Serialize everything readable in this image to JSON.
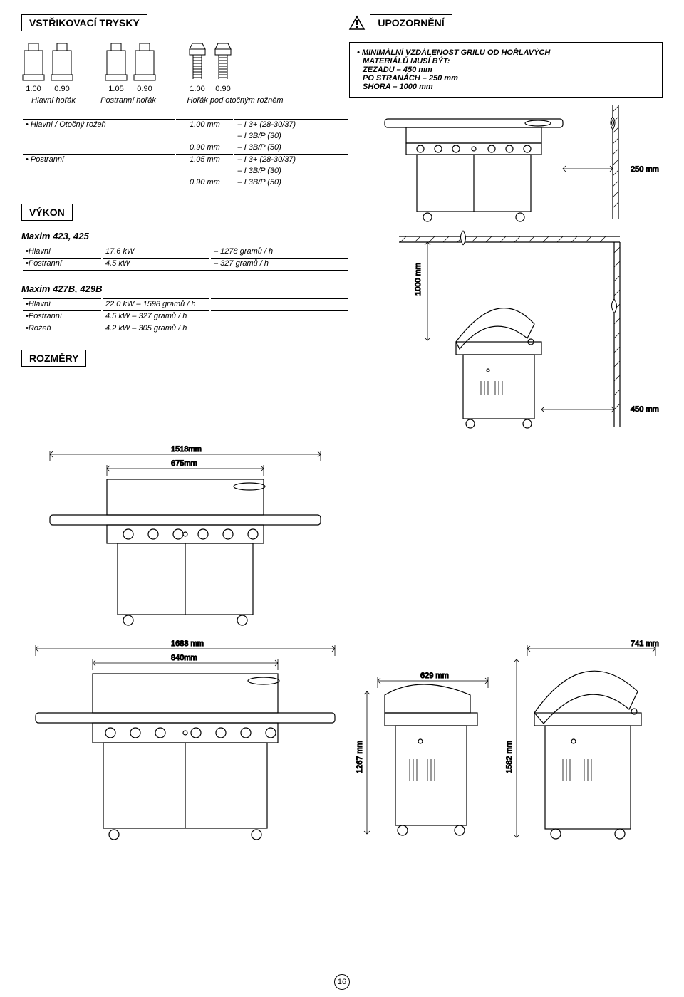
{
  "titles": {
    "nozzles": "VSTŘIKOVACÍ TRYSKY",
    "warning": "UPOZORNĚNÍ",
    "output": "VÝKON",
    "dimensions": "ROZMĚRY"
  },
  "nozzle_values": {
    "n1": "1.00",
    "n2": "0.90",
    "n3": "1.05",
    "n4": "0.90",
    "n5": "1.00",
    "n6": "0.90"
  },
  "burner_labels": {
    "main": "Hlavní hořák",
    "side": "Postranní hořák",
    "rot": "Hořák pod otočným rožněm"
  },
  "warning_text": {
    "line1": "• MINIMÁLNÍ VZDÁLENOST GRILU OD HOŘLAVÝCH",
    "line2": "MATERIÁLŮ MUSÍ BÝT:",
    "line3": "ZEZADU – 450 mm",
    "line4": "PO STRANÁCH – 250 mm",
    "line5": "SHORA – 1000 mm"
  },
  "spec_rows": [
    {
      "c1": "Hlavní / Otočný rožeň",
      "c2": "1.00 mm",
      "c3": "– I 3+ (28-30/37)"
    },
    {
      "c1": "",
      "c2": "",
      "c3": "– I 3B/P (30)"
    },
    {
      "c1": "",
      "c2": "0.90 mm",
      "c3": "– I 3B/P (50)"
    },
    {
      "c1": "Postranní",
      "c2": "1.05 mm",
      "c3": "– I 3+ (28-30/37)"
    },
    {
      "c1": "",
      "c2": "",
      "c3": "– I 3B/P (30)"
    },
    {
      "c1": "",
      "c2": "0.90 mm",
      "c3": "– I 3B/P (50)"
    }
  ],
  "perf1_title": "Maxim 423, 425",
  "perf1_rows": [
    {
      "c1": "•Hlavní",
      "c2": "17.6 kW",
      "c3": "– 1278 gramů / h"
    },
    {
      "c1": "•Postranní",
      "c2": "4.5 kW",
      "c3": "– 327 gramů / h"
    }
  ],
  "perf2_title": "Maxim 427B, 429B",
  "perf2_rows": [
    {
      "c1": "•Hlavní",
      "c2": "22.0 kW – 1598 gramů / h",
      "c3": ""
    },
    {
      "c1": "•Postranní",
      "c2": "4.5 kW – 327 gramů / h",
      "c3": ""
    },
    {
      "c1": "•Rožeň",
      "c2": "4.2 kW – 305 gramů / h",
      "c3": ""
    }
  ],
  "dimensions": {
    "d250": "250 mm",
    "d1000": "1000 mm",
    "d450": "450 mm",
    "d1518": "1518mm",
    "d675": "675mm",
    "d1683": "1683 mm",
    "d840": "840mm",
    "d741": "741 mm",
    "d629": "629 mm",
    "d1267": "1267 mm",
    "d1582": "1582 mm"
  },
  "page_number": "16",
  "colors": {
    "stroke": "#000000",
    "bg": "#ffffff",
    "hatch": "#000000"
  }
}
